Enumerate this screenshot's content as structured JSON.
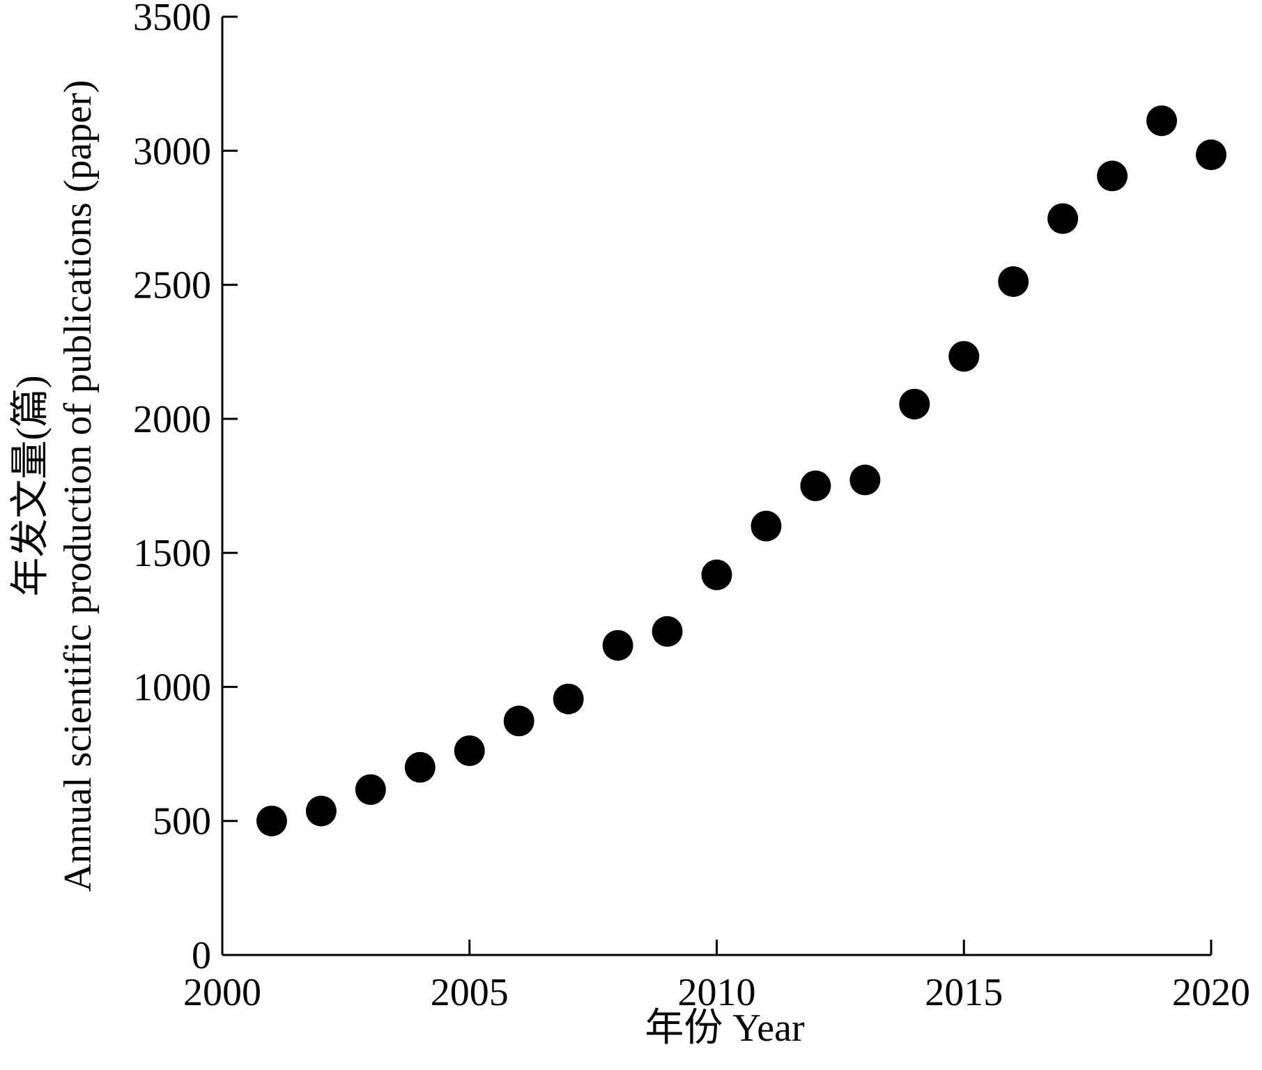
{
  "chart_data": {
    "type": "scatter",
    "title": "",
    "xlabel": "年份 Year",
    "ylabel_line1": "年发文量(篇)",
    "ylabel_line2": "Annual scientific production of publications (paper)",
    "xlim": [
      2000,
      2020
    ],
    "ylim": [
      0,
      3500
    ],
    "xticks": [
      2000,
      2005,
      2010,
      2015,
      2020
    ],
    "yticks": [
      0,
      500,
      1000,
      1500,
      2000,
      2500,
      3000,
      3500
    ],
    "grid": false,
    "legend": "none",
    "marker_color": "#000000",
    "series": [
      {
        "x": [
          2001,
          2002,
          2003,
          2004,
          2005,
          2006,
          2007,
          2008,
          2009,
          2010,
          2011,
          2012,
          2013,
          2014,
          2015,
          2016,
          2017,
          2018,
          2019,
          2020
        ],
        "y": [
          500,
          537,
          617,
          700,
          762,
          873,
          955,
          1155,
          1207,
          1418,
          1600,
          1750,
          1772,
          2055,
          2233,
          2512,
          2747,
          2906,
          3112,
          2985
        ]
      }
    ]
  }
}
